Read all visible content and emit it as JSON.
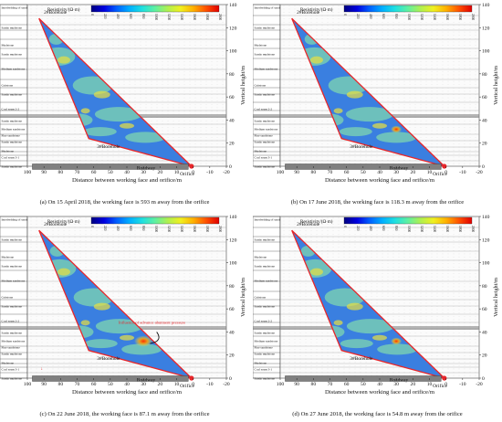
{
  "strata_labels": [
    "Interbedding of sandy mudstone and mudstone",
    "Sandy mudstone",
    "Mudstone",
    "Sandy mudstone",
    "Medium sandstone",
    "Gritstone",
    "Sandy mudstone",
    "Coal seam 2-2",
    "Sandy mudstone",
    "Medium sandstone",
    "Fine sandstone",
    "Sandy mudstone",
    "Mudstone",
    "Coal seam 3-1",
    "Sandy mudstone"
  ],
  "legend": {
    "title": "Resistivity/(Ω·m)",
    "ticks": [
      "0",
      "220",
      "400",
      "600",
      "800",
      "1000",
      "1200",
      "1400",
      "1600",
      "1800",
      "2000"
    ]
  },
  "axes": {
    "x_label": "Distance between working face and orifice/m",
    "x_ticks": [
      "100",
      "90",
      "80",
      "70",
      "60",
      "50",
      "40",
      "30",
      "20",
      "10",
      "0",
      "-10",
      "-20"
    ],
    "y_label": "Vertical height/m",
    "y_ticks": [
      "0",
      "20",
      "40",
      "60",
      "80",
      "100",
      "120",
      "140"
    ]
  },
  "annotations": {
    "borehole2": "2#Borehole",
    "borehole3": "3#Borehole",
    "roadway": "Roadway",
    "orifice": "Orifice",
    "influence": "Influence of advance abutment pressure"
  },
  "panels": [
    {
      "caption": "(a) On 15 April 2018, the working face is 593 m away from the orifice"
    },
    {
      "caption": "(b) On 17 June 2018, the working face is 118.3 m away from the orifice"
    },
    {
      "caption": "(c) On 22 June 2018, the working face is 87.1 m away from the orifice"
    },
    {
      "caption": "(d) On 27 June 2018, the working face is 54.8 m away from the orifice"
    }
  ],
  "colors": {
    "borehole_line": "#e8262a",
    "roadway": "#808080",
    "field_low": "#3a7fe0",
    "field_mid": "#7fd5b0",
    "field_high": "#e8e040",
    "anomaly": "#e8a020"
  }
}
